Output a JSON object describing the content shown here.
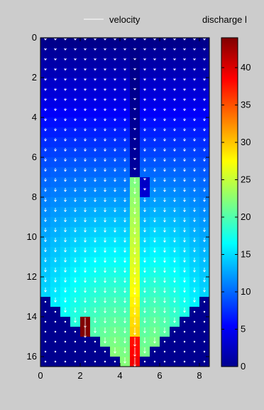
{
  "chart_data": {
    "type": "heatmap",
    "legend": {
      "series": "velocity",
      "placement": "top"
    },
    "colorbar": {
      "label": "discharge  l",
      "range": [
        0,
        44
      ],
      "ticks": [
        0,
        5,
        10,
        15,
        20,
        25,
        30,
        35,
        40
      ],
      "colormap": "jet"
    },
    "x_axis": {
      "range": [
        0,
        8.5
      ],
      "ticks": [
        0,
        2,
        4,
        6,
        8
      ]
    },
    "y_axis": {
      "range": [
        0,
        16.5
      ],
      "reversed": true,
      "ticks": [
        0,
        2,
        4,
        6,
        8,
        10,
        12,
        14,
        16
      ]
    },
    "grid": false,
    "cell_size": [
      0.5,
      0.5
    ],
    "discharge_rows": [
      [
        0.5,
        0.5,
        0.5,
        0.5,
        0.5,
        0.5,
        0.5,
        0.5,
        0.5,
        0.5,
        0.5,
        0.5,
        0.5,
        0.5,
        0.5,
        0.5,
        0.5
      ],
      [
        1.2,
        1.2,
        1.2,
        1.2,
        1.2,
        1.2,
        1.2,
        1.2,
        1.2,
        0.4,
        1.2,
        1.2,
        1.2,
        1.2,
        1.2,
        1.2,
        1.2
      ],
      [
        1.8,
        1.8,
        1.8,
        1.8,
        1.8,
        1.8,
        1.8,
        1.8,
        1.8,
        0.4,
        1.8,
        1.8,
        1.8,
        1.8,
        1.8,
        1.8,
        1.8
      ],
      [
        2.3,
        2.4,
        2.4,
        2.4,
        2.4,
        2.4,
        2.4,
        2.4,
        2.4,
        0.5,
        2.4,
        2.4,
        2.4,
        2.4,
        2.4,
        2.4,
        2.3
      ],
      [
        3.0,
        3.2,
        3.2,
        3.2,
        3.2,
        3.2,
        3.2,
        3.2,
        3.2,
        0.5,
        3.2,
        3.2,
        3.2,
        3.2,
        3.2,
        3.2,
        3.0
      ],
      [
        3.7,
        3.8,
        3.8,
        3.8,
        3.8,
        3.8,
        3.8,
        3.8,
        3.8,
        0.6,
        3.8,
        3.8,
        3.8,
        3.8,
        3.8,
        3.8,
        3.7
      ],
      [
        4.4,
        4.5,
        4.5,
        4.5,
        4.5,
        4.5,
        4.5,
        4.5,
        4.5,
        0.7,
        4.5,
        4.5,
        4.5,
        4.5,
        4.5,
        4.5,
        4.4
      ],
      [
        5.2,
        5.3,
        5.3,
        5.3,
        5.3,
        5.3,
        5.3,
        5.3,
        5.3,
        0.8,
        5.3,
        5.3,
        5.3,
        5.3,
        5.3,
        5.3,
        5.2
      ],
      [
        6.0,
        6.1,
        6.1,
        6.1,
        6.1,
        6.1,
        6.1,
        6.1,
        6.1,
        0.9,
        6.1,
        6.1,
        6.1,
        6.1,
        6.1,
        6.1,
        6.0
      ],
      [
        6.7,
        6.8,
        6.9,
        6.9,
        6.9,
        6.9,
        6.9,
        6.9,
        6.9,
        1.0,
        6.9,
        6.9,
        6.9,
        6.9,
        6.9,
        6.8,
        6.7
      ],
      [
        7.4,
        7.6,
        7.6,
        7.6,
        7.6,
        7.6,
        7.6,
        7.6,
        7.6,
        1.0,
        7.6,
        7.6,
        7.6,
        7.6,
        7.6,
        7.6,
        7.4
      ],
      [
        8.1,
        8.3,
        8.4,
        8.4,
        8.4,
        8.4,
        8.4,
        8.4,
        8.4,
        1.1,
        8.4,
        8.4,
        8.4,
        8.4,
        8.4,
        8.3,
        8.1
      ],
      [
        8.8,
        9.0,
        9.1,
        9.2,
        9.2,
        9.2,
        9.2,
        9.2,
        9.2,
        1.2,
        9.2,
        9.2,
        9.2,
        9.2,
        9.1,
        9.0,
        8.8
      ],
      [
        9.4,
        9.7,
        9.8,
        9.9,
        10.0,
        10.0,
        10.0,
        10.0,
        10.0,
        1.3,
        10.0,
        10.0,
        10.0,
        10.0,
        9.8,
        9.7,
        9.4
      ],
      [
        10.0,
        10.3,
        10.5,
        10.6,
        10.7,
        10.8,
        10.8,
        10.8,
        10.7,
        22.0,
        3.0,
        10.8,
        10.8,
        10.7,
        10.5,
        10.3,
        10.0
      ],
      [
        10.6,
        10.9,
        11.1,
        11.3,
        11.4,
        11.5,
        11.6,
        11.6,
        11.4,
        22.5,
        3.5,
        11.6,
        11.6,
        11.5,
        11.2,
        10.9,
        10.6
      ],
      [
        11.1,
        11.5,
        11.8,
        12.0,
        12.2,
        12.3,
        12.4,
        12.4,
        12.2,
        23.0,
        12.0,
        12.4,
        12.4,
        12.2,
        11.9,
        11.5,
        11.1
      ],
      [
        11.6,
        12.1,
        12.4,
        12.7,
        12.9,
        13.1,
        13.2,
        13.2,
        13.0,
        23.5,
        12.8,
        13.2,
        13.1,
        12.9,
        12.5,
        12.1,
        11.6
      ],
      [
        12.1,
        12.6,
        13.0,
        13.3,
        13.6,
        13.8,
        14.0,
        14.0,
        13.8,
        24.0,
        13.5,
        14.0,
        13.8,
        13.6,
        13.2,
        12.6,
        12.1
      ],
      [
        12.6,
        13.1,
        13.6,
        14.0,
        14.3,
        14.5,
        14.7,
        14.8,
        14.5,
        24.5,
        14.2,
        14.8,
        14.6,
        14.3,
        13.8,
        13.1,
        12.6
      ],
      [
        13.0,
        13.6,
        14.1,
        14.5,
        14.9,
        15.2,
        15.4,
        15.5,
        15.2,
        25.0,
        14.9,
        15.5,
        15.3,
        14.9,
        14.4,
        13.6,
        13.0
      ],
      [
        13.4,
        14.0,
        14.6,
        15.1,
        15.5,
        15.8,
        16.1,
        16.2,
        15.9,
        25.5,
        15.6,
        16.2,
        15.9,
        15.5,
        14.9,
        14.1,
        13.4
      ],
      [
        13.8,
        14.4,
        15.0,
        15.6,
        16.1,
        16.4,
        16.7,
        16.9,
        16.6,
        26.0,
        16.3,
        16.9,
        16.6,
        16.1,
        15.4,
        14.5,
        13.8
      ],
      [
        14.1,
        14.8,
        15.5,
        16.1,
        16.6,
        17.0,
        17.4,
        17.6,
        17.2,
        26.5,
        17.0,
        17.6,
        17.2,
        16.7,
        15.9,
        14.9,
        14.1
      ],
      [
        14.4,
        15.2,
        15.9,
        16.6,
        17.2,
        17.6,
        18.0,
        18.3,
        17.9,
        27.0,
        17.7,
        18.3,
        17.8,
        17.2,
        16.4,
        15.3,
        14.4
      ],
      [
        14.7,
        15.5,
        16.3,
        17.0,
        17.7,
        18.2,
        18.6,
        18.9,
        18.5,
        27.5,
        18.3,
        18.9,
        18.4,
        17.7,
        16.8,
        15.7,
        14.7
      ],
      [
        0,
        15.8,
        16.6,
        17.4,
        18.1,
        18.7,
        19.2,
        19.5,
        19.1,
        28.0,
        18.9,
        19.5,
        19.0,
        18.2,
        17.2,
        16.0,
        0
      ],
      [
        0,
        0,
        16.9,
        17.8,
        18.6,
        19.2,
        19.8,
        20.1,
        19.7,
        28.5,
        19.5,
        20.1,
        19.5,
        18.7,
        17.6,
        0,
        0
      ],
      [
        0,
        0,
        0,
        18.1,
        44.0,
        19.7,
        20.3,
        20.7,
        20.3,
        29.0,
        20.1,
        20.7,
        20.0,
        19.1,
        0,
        0,
        0
      ],
      [
        0,
        0,
        0,
        0,
        44.0,
        20.1,
        20.8,
        21.3,
        20.8,
        29.5,
        20.6,
        21.2,
        20.4,
        0,
        0,
        0,
        0
      ],
      [
        0,
        0,
        0,
        0,
        0,
        0,
        21.3,
        21.8,
        21.3,
        38.0,
        21.1,
        21.7,
        0,
        0,
        0,
        0,
        0
      ],
      [
        0,
        0,
        0,
        0,
        0,
        0,
        0,
        22.3,
        21.8,
        38.5,
        21.6,
        0,
        0,
        0,
        0,
        0,
        0
      ],
      [
        0,
        0,
        0,
        0,
        0,
        0,
        0,
        0,
        22.3,
        39.0,
        0,
        0,
        0,
        0,
        0,
        0,
        0
      ]
    ],
    "velocity_arrows": {
      "spacing": [
        0.5,
        0.5
      ],
      "direction": "downward",
      "color": "#ffffff"
    }
  }
}
